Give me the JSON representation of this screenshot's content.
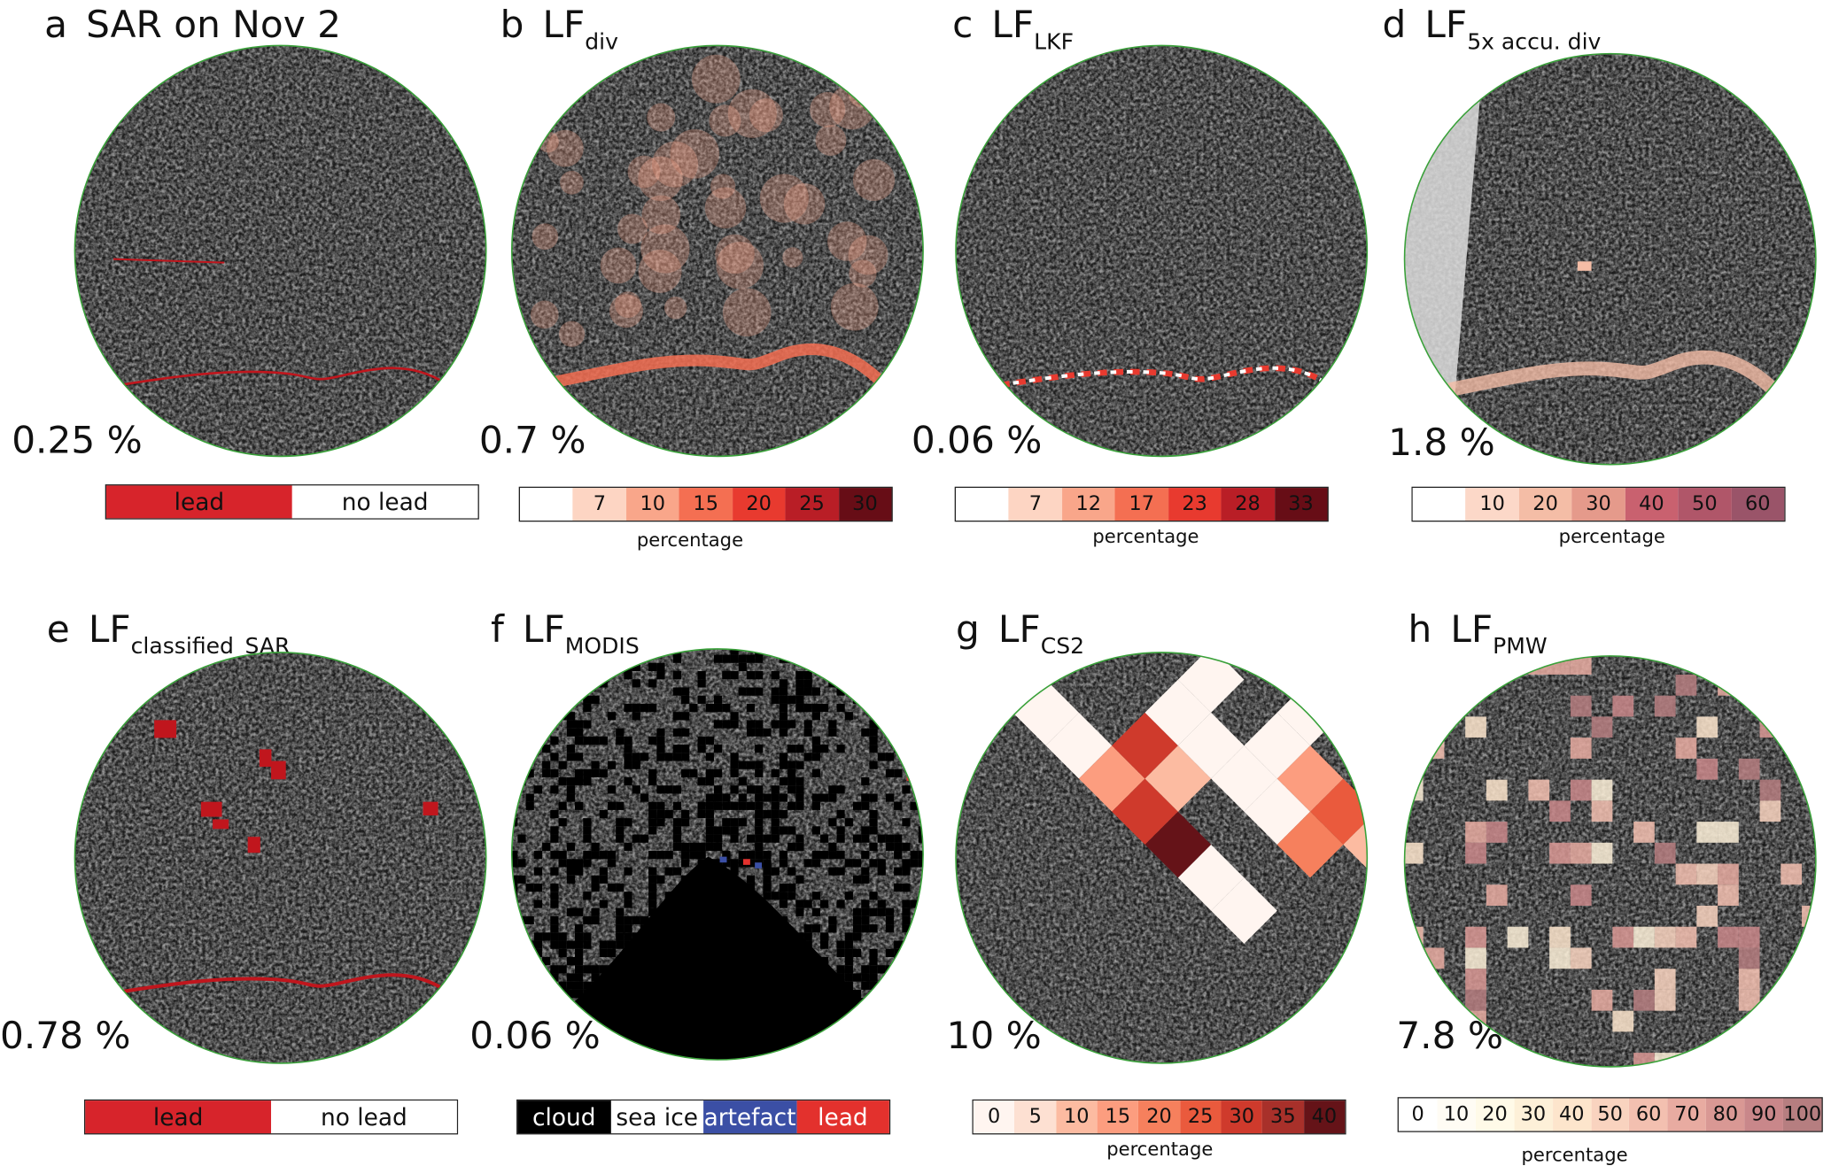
{
  "panels": [
    {
      "letter": "a",
      "title": "SAR on Nov 2",
      "sub": "",
      "percent": "0.25 %"
    },
    {
      "letter": "b",
      "title": "LF",
      "sub": "div",
      "percent": "0.7 %"
    },
    {
      "letter": "c",
      "title": "LF",
      "sub": "LKF",
      "percent": "0.06 %"
    },
    {
      "letter": "d",
      "title": "LF",
      "sub": "5x accu. div",
      "percent": "1.8 %"
    },
    {
      "letter": "e",
      "title": "LF",
      "sub": "classified_SAR",
      "percent": "0.78 %"
    },
    {
      "letter": "f",
      "title": "LF",
      "sub": "MODIS",
      "percent": "0.06 %"
    },
    {
      "letter": "g",
      "title": "LF",
      "sub": "CS2",
      "percent": "10 %"
    },
    {
      "letter": "h",
      "title": "LF",
      "sub": "PMW",
      "percent": "7.8 %"
    }
  ],
  "legends": {
    "a": {
      "items": [
        {
          "label": "lead",
          "color": "#d7242b"
        },
        {
          "label": "no lead",
          "color": "#ffffff"
        }
      ]
    },
    "b": {
      "title": "percentage",
      "items": [
        {
          "label": "",
          "color": "#ffffff"
        },
        {
          "label": "7",
          "color": "#fdd5c3"
        },
        {
          "label": "10",
          "color": "#f9a68a"
        },
        {
          "label": "15",
          "color": "#f46f52"
        },
        {
          "label": "20",
          "color": "#e83a2f"
        },
        {
          "label": "25",
          "color": "#b91e26"
        },
        {
          "label": "30",
          "color": "#670d16"
        }
      ]
    },
    "c": {
      "title": "percentage",
      "items": [
        {
          "label": "",
          "color": "#ffffff"
        },
        {
          "label": "7",
          "color": "#fdd5c3"
        },
        {
          "label": "12",
          "color": "#f9a68a"
        },
        {
          "label": "17",
          "color": "#f46f52"
        },
        {
          "label": "23",
          "color": "#e83a2f"
        },
        {
          "label": "28",
          "color": "#b91e26"
        },
        {
          "label": "33",
          "color": "#670d16"
        }
      ]
    },
    "d": {
      "title": "percentage",
      "items": [
        {
          "label": "",
          "color": "#ffffff"
        },
        {
          "label": "10",
          "color": "#fcd8c8"
        },
        {
          "label": "20",
          "color": "#f4bda6"
        },
        {
          "label": "30",
          "color": "#e59a8b"
        },
        {
          "label": "40",
          "color": "#c9616f"
        },
        {
          "label": "50",
          "color": "#b05669"
        },
        {
          "label": "60",
          "color": "#9a5469"
        }
      ]
    },
    "e": {
      "items": [
        {
          "label": "lead",
          "color": "#d7242b"
        },
        {
          "label": "no lead",
          "color": "#ffffff"
        }
      ]
    },
    "f": {
      "items": [
        {
          "label": "cloud",
          "color": "#000000",
          "text": "#ffffff"
        },
        {
          "label": "sea ice",
          "color": "#ffffff",
          "text": "#111111"
        },
        {
          "label": "artefact",
          "color": "#3b4fa5",
          "text": "#ffffff"
        },
        {
          "label": "lead",
          "color": "#e3312d",
          "text": "#ffffff"
        }
      ]
    },
    "g": {
      "title": "percentage",
      "items": [
        {
          "label": "0",
          "color": "#fff5f0"
        },
        {
          "label": "5",
          "color": "#fde0d2"
        },
        {
          "label": "10",
          "color": "#fcbba1"
        },
        {
          "label": "15",
          "color": "#fc9d7f"
        },
        {
          "label": "20",
          "color": "#f6805d"
        },
        {
          "label": "25",
          "color": "#ea5a3d"
        },
        {
          "label": "30",
          "color": "#cf3a2c"
        },
        {
          "label": "35",
          "color": "#a8302a"
        },
        {
          "label": "40",
          "color": "#651318"
        }
      ]
    },
    "h": {
      "title": "percentage",
      "items": [
        {
          "label": "0",
          "color": "#ffffff"
        },
        {
          "label": "10",
          "color": "#fffcf4"
        },
        {
          "label": "20",
          "color": "#fffae8"
        },
        {
          "label": "30",
          "color": "#fdf0d8"
        },
        {
          "label": "40",
          "color": "#fde5cc"
        },
        {
          "label": "50",
          "color": "#f9d3bf"
        },
        {
          "label": "60",
          "color": "#f3c0b0"
        },
        {
          "label": "70",
          "color": "#e8aba1"
        },
        {
          "label": "80",
          "color": "#d99894"
        },
        {
          "label": "90",
          "color": "#c9878a"
        },
        {
          "label": "100",
          "color": "#b67e80"
        }
      ]
    }
  },
  "colors": {
    "circle_border": "#3aa13a",
    "lead": "#c0161d"
  }
}
